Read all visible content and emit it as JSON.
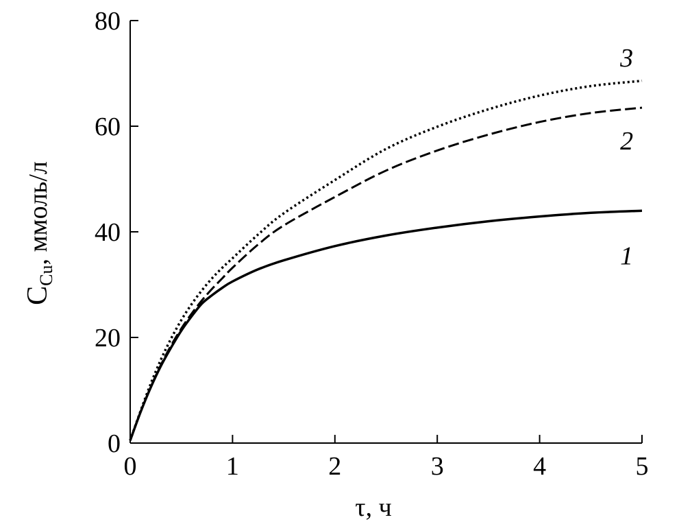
{
  "chart_data": {
    "type": "line",
    "title": "",
    "xlabel": "τ, ч",
    "ylabel": {
      "main": "C",
      "sub": "Cu",
      "rest": ",  ммоль/л"
    },
    "xlim": [
      0,
      5
    ],
    "ylim": [
      0,
      80
    ],
    "x_ticks": [
      0,
      1,
      2,
      3,
      4,
      5
    ],
    "y_ticks": [
      0,
      20,
      40,
      60,
      80
    ],
    "grid": false,
    "legend": "none",
    "series": [
      {
        "name": "1",
        "line_style": "solid",
        "x": [
          0,
          0.1,
          0.2,
          0.3,
          0.4,
          0.5,
          0.6,
          0.7,
          0.8,
          0.9,
          1.0,
          1.25,
          1.5,
          2.0,
          2.5,
          3.0,
          3.5,
          4.0,
          4.5,
          5.0
        ],
        "y": [
          0.5,
          5.8,
          10.5,
          14.6,
          18.1,
          21.3,
          24.0,
          26.4,
          28.0,
          29.4,
          30.6,
          32.9,
          34.6,
          37.3,
          39.3,
          40.8,
          42.0,
          42.9,
          43.6,
          44.0
        ]
      },
      {
        "name": "2",
        "line_style": "dashed",
        "x": [
          0,
          0.1,
          0.2,
          0.3,
          0.4,
          0.5,
          0.6,
          0.7,
          0.8,
          0.9,
          1.0,
          1.25,
          1.5,
          2.0,
          2.5,
          3.0,
          3.5,
          4.0,
          4.5,
          5.0
        ],
        "y": [
          0.5,
          5.8,
          10.6,
          14.8,
          18.5,
          21.7,
          24.5,
          27.0,
          29.2,
          31.2,
          33.2,
          37.6,
          41.2,
          46.6,
          51.6,
          55.4,
          58.4,
          60.8,
          62.5,
          63.5
        ]
      },
      {
        "name": "3",
        "line_style": "dotted",
        "x": [
          0,
          0.1,
          0.2,
          0.3,
          0.4,
          0.5,
          0.6,
          0.7,
          0.8,
          0.9,
          1.0,
          1.25,
          1.5,
          2.0,
          2.5,
          3.0,
          3.5,
          4.0,
          4.5,
          5.0
        ],
        "y": [
          0.5,
          6.0,
          11.2,
          15.8,
          19.8,
          23.3,
          26.3,
          28.9,
          31.2,
          33.2,
          35.0,
          39.5,
          43.5,
          49.8,
          55.7,
          59.9,
          63.2,
          65.8,
          67.6,
          68.6
        ]
      }
    ],
    "series_label_positions": {
      "1": {
        "x": 4.85,
        "y": 35.5
      },
      "2": {
        "x": 4.85,
        "y": 57.3
      },
      "3": {
        "x": 4.85,
        "y": 73.0
      }
    }
  }
}
